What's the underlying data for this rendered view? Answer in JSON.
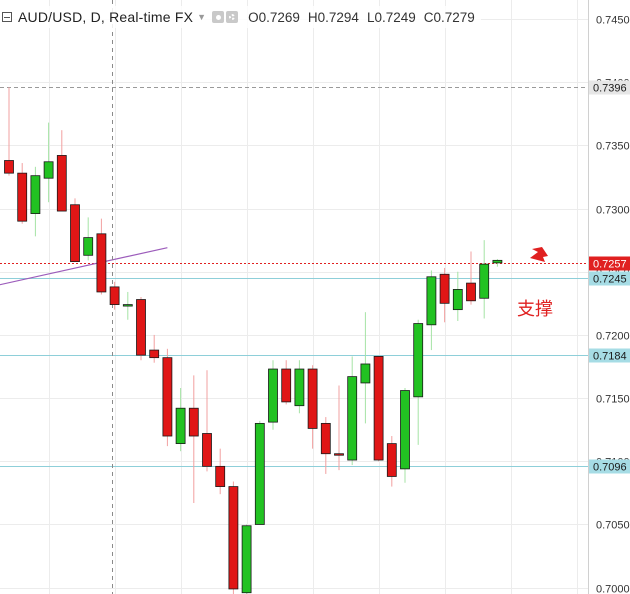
{
  "header": {
    "symbol": "AUD/USD, D, Real-time FX",
    "ohlc": {
      "open": "O0.7269",
      "high": "H0.7294",
      "low": "L0.7249",
      "close": "C0.7279"
    }
  },
  "colors": {
    "up": "#22c222",
    "down": "#e01616",
    "grid": "#ececec",
    "support": "#8ecfd9",
    "current_line": "#e02020",
    "trend": "#9c5cbb",
    "dashed": "#9a9a9a",
    "annotation": "#e02020"
  },
  "annotation_text": "支撑",
  "chart_data": {
    "type": "candlestick",
    "title": "AUD/USD, D, Real-time FX",
    "ylim": [
      0.6995,
      0.7465
    ],
    "y_ticks": [
      "0.7000",
      "0.7050",
      "0.7100",
      "0.7150",
      "0.7200",
      "0.7250",
      "0.7300",
      "0.7350",
      "0.7400",
      "0.7450"
    ],
    "candles": [
      {
        "o": 0.7338,
        "h": 0.7396,
        "l": 0.7326,
        "c": 0.7328
      },
      {
        "o": 0.7328,
        "h": 0.7336,
        "l": 0.7288,
        "c": 0.729
      },
      {
        "o": 0.7296,
        "h": 0.7333,
        "l": 0.7278,
        "c": 0.7326
      },
      {
        "o": 0.7324,
        "h": 0.7368,
        "l": 0.7305,
        "c": 0.7337
      },
      {
        "o": 0.7342,
        "h": 0.7362,
        "l": 0.7298,
        "c": 0.7298
      },
      {
        "o": 0.7303,
        "h": 0.7308,
        "l": 0.7258,
        "c": 0.7258
      },
      {
        "o": 0.7263,
        "h": 0.7293,
        "l": 0.7259,
        "c": 0.7277
      },
      {
        "o": 0.728,
        "h": 0.7292,
        "l": 0.7232,
        "c": 0.7234
      },
      {
        "o": 0.7238,
        "h": 0.7242,
        "l": 0.722,
        "c": 0.7224
      },
      {
        "o": 0.7223,
        "h": 0.7234,
        "l": 0.7212,
        "c": 0.7224
      },
      {
        "o": 0.7228,
        "h": 0.723,
        "l": 0.718,
        "c": 0.7184
      },
      {
        "o": 0.7188,
        "h": 0.72,
        "l": 0.7178,
        "c": 0.7182
      },
      {
        "o": 0.7182,
        "h": 0.7189,
        "l": 0.7112,
        "c": 0.712
      },
      {
        "o": 0.7114,
        "h": 0.7158,
        "l": 0.7108,
        "c": 0.7142
      },
      {
        "o": 0.7142,
        "h": 0.7168,
        "l": 0.7067,
        "c": 0.712
      },
      {
        "o": 0.7122,
        "h": 0.7172,
        "l": 0.7092,
        "c": 0.7096
      },
      {
        "o": 0.7096,
        "h": 0.711,
        "l": 0.7074,
        "c": 0.708
      },
      {
        "o": 0.708,
        "h": 0.7084,
        "l": 0.6994,
        "c": 0.6999
      },
      {
        "o": 0.6996,
        "h": 0.705,
        "l": 0.6994,
        "c": 0.7049
      },
      {
        "o": 0.705,
        "h": 0.7132,
        "l": 0.705,
        "c": 0.713
      },
      {
        "o": 0.7131,
        "h": 0.718,
        "l": 0.7125,
        "c": 0.7173
      },
      {
        "o": 0.7173,
        "h": 0.718,
        "l": 0.7145,
        "c": 0.7147
      },
      {
        "o": 0.7144,
        "h": 0.718,
        "l": 0.7138,
        "c": 0.7173
      },
      {
        "o": 0.7173,
        "h": 0.7176,
        "l": 0.711,
        "c": 0.7126
      },
      {
        "o": 0.713,
        "h": 0.7135,
        "l": 0.709,
        "c": 0.7106
      },
      {
        "o": 0.7106,
        "h": 0.716,
        "l": 0.7093,
        "c": 0.7105
      },
      {
        "o": 0.7101,
        "h": 0.7183,
        "l": 0.7097,
        "c": 0.7167
      },
      {
        "o": 0.7162,
        "h": 0.7218,
        "l": 0.713,
        "c": 0.7177
      },
      {
        "o": 0.7183,
        "h": 0.7183,
        "l": 0.71,
        "c": 0.7101
      },
      {
        "o": 0.7114,
        "h": 0.712,
        "l": 0.708,
        "c": 0.7088
      },
      {
        "o": 0.7094,
        "h": 0.7158,
        "l": 0.7083,
        "c": 0.7156
      },
      {
        "o": 0.7151,
        "h": 0.7212,
        "l": 0.7113,
        "c": 0.7209
      },
      {
        "o": 0.7208,
        "h": 0.7251,
        "l": 0.7188,
        "c": 0.7246
      },
      {
        "o": 0.7248,
        "h": 0.7253,
        "l": 0.721,
        "c": 0.7225
      },
      {
        "o": 0.722,
        "h": 0.725,
        "l": 0.7211,
        "c": 0.7236
      },
      {
        "o": 0.7241,
        "h": 0.7266,
        "l": 0.7224,
        "c": 0.7227
      },
      {
        "o": 0.7229,
        "h": 0.7275,
        "l": 0.7213,
        "c": 0.7256
      },
      {
        "o": 0.7257,
        "h": 0.726,
        "l": 0.7254,
        "c": 0.7259
      }
    ],
    "horizontal_lines": [
      {
        "value": 0.7396,
        "label": "0.7396",
        "style": "dashed"
      },
      {
        "value": 0.7257,
        "label": "0.7257",
        "style": "current"
      },
      {
        "value": 0.7245,
        "label": "0.7245",
        "style": "support"
      },
      {
        "value": 0.7184,
        "label": "0.7184",
        "style": "support"
      },
      {
        "value": 0.7096,
        "label": "0.7096",
        "style": "support"
      }
    ],
    "trend_line": {
      "from": {
        "i": -1,
        "v": 0.7239
      },
      "to": {
        "i": 12,
        "v": 0.7269
      }
    },
    "crosshair_index": 7.8,
    "grid": true
  }
}
